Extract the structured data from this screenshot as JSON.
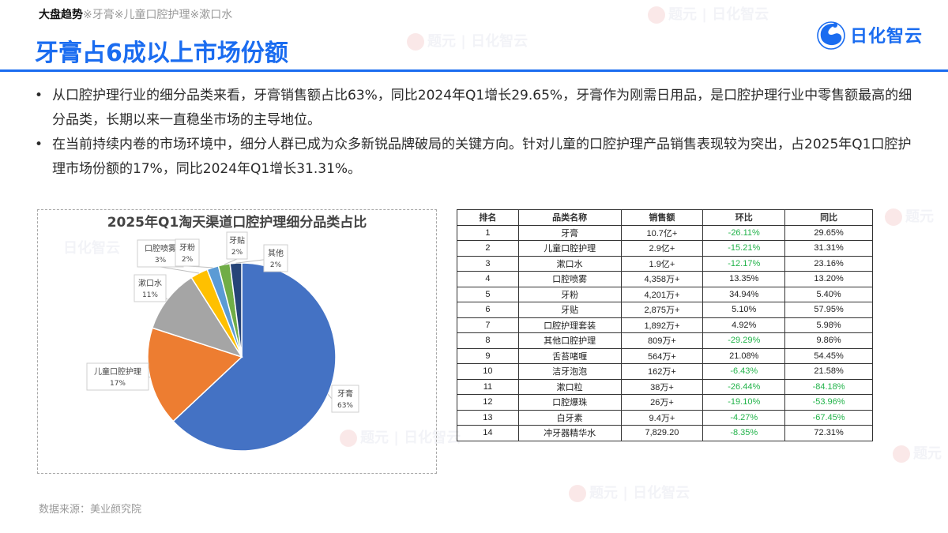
{
  "header": {
    "breadcrumb_main": "大盘趋势",
    "breadcrumb_rest": "※牙膏※儿童口腔护理※漱口水",
    "title": "牙膏占6成以上市场份额",
    "logo_text": "日化智云"
  },
  "bullets": [
    {
      "text": "从口腔护理行业的细分品类来看，牙膏销售额占比63%，同比2024年Q1增长29.65%，牙膏作为刚需日用品，是口腔护理行业中零售额最高的细分品类，长期以来一直稳坐市场的主导地位。"
    },
    {
      "text": "在当前持续内卷的市场环境中，细分人群已成为众多新锐品牌破局的关键方向。针对儿童的口腔护理产品销售表现较为突出，占2025年Q1口腔护理市场份额的17%，同比2024年Q1增长31.31%。"
    }
  ],
  "chart_data": {
    "type": "pie",
    "title": "2025年Q1淘天渠道口腔护理细分品类占比",
    "categories": [
      "牙膏",
      "儿童口腔护理",
      "漱口水",
      "口腔喷雾",
      "牙粉",
      "牙贴",
      "其他"
    ],
    "values": [
      63,
      17,
      11,
      3,
      2,
      2,
      2
    ],
    "labels": [
      "63%",
      "17%",
      "11%",
      "3%",
      "2%",
      "2%",
      "2%"
    ],
    "colors": [
      "#4472c4",
      "#ed7d31",
      "#a5a5a5",
      "#ffc000",
      "#5b9bd5",
      "#70ad47",
      "#264478"
    ],
    "start_angle_deg": 0,
    "direction": "clockwise",
    "legend": "none (data callouts)"
  },
  "table": {
    "headers": [
      "排名",
      "品类名称",
      "销售额",
      "环比",
      "同比"
    ],
    "rows": [
      [
        "1",
        "牙膏",
        "10.7亿+",
        "-26.11%",
        "29.65%"
      ],
      [
        "2",
        "儿童口腔护理",
        "2.9亿+",
        "-15.21%",
        "31.31%"
      ],
      [
        "3",
        "漱口水",
        "1.9亿+",
        "-12.17%",
        "23.16%"
      ],
      [
        "4",
        "口腔喷雾",
        "4,358万+",
        "13.35%",
        "13.20%"
      ],
      [
        "5",
        "牙粉",
        "4,201万+",
        "34.94%",
        "5.40%"
      ],
      [
        "6",
        "牙贴",
        "2,875万+",
        "5.10%",
        "57.95%"
      ],
      [
        "7",
        "口腔护理套装",
        "1,892万+",
        "4.92%",
        "5.98%"
      ],
      [
        "8",
        "其他口腔护理",
        "809万+",
        "-29.29%",
        "9.86%"
      ],
      [
        "9",
        "舌苔啫喱",
        "564万+",
        "21.08%",
        "54.45%"
      ],
      [
        "10",
        "洁牙泡泡",
        "162万+",
        "-6.43%",
        "21.58%"
      ],
      [
        "11",
        "漱口粒",
        "38万+",
        "-26.44%",
        "-84.18%"
      ],
      [
        "12",
        "口腔爆珠",
        "26万+",
        "-19.10%",
        "-53.96%"
      ],
      [
        "13",
        "白牙素",
        "9.4万+",
        "-4.27%",
        "-67.45%"
      ],
      [
        "14",
        "冲牙器精华水",
        "7,829.20",
        "-8.35%",
        "72.31%"
      ]
    ]
  },
  "footer": {
    "source": "数据来源：美业颜究院"
  },
  "colors": {
    "accent": "#1a6cf0",
    "negative": "#22b34a"
  }
}
